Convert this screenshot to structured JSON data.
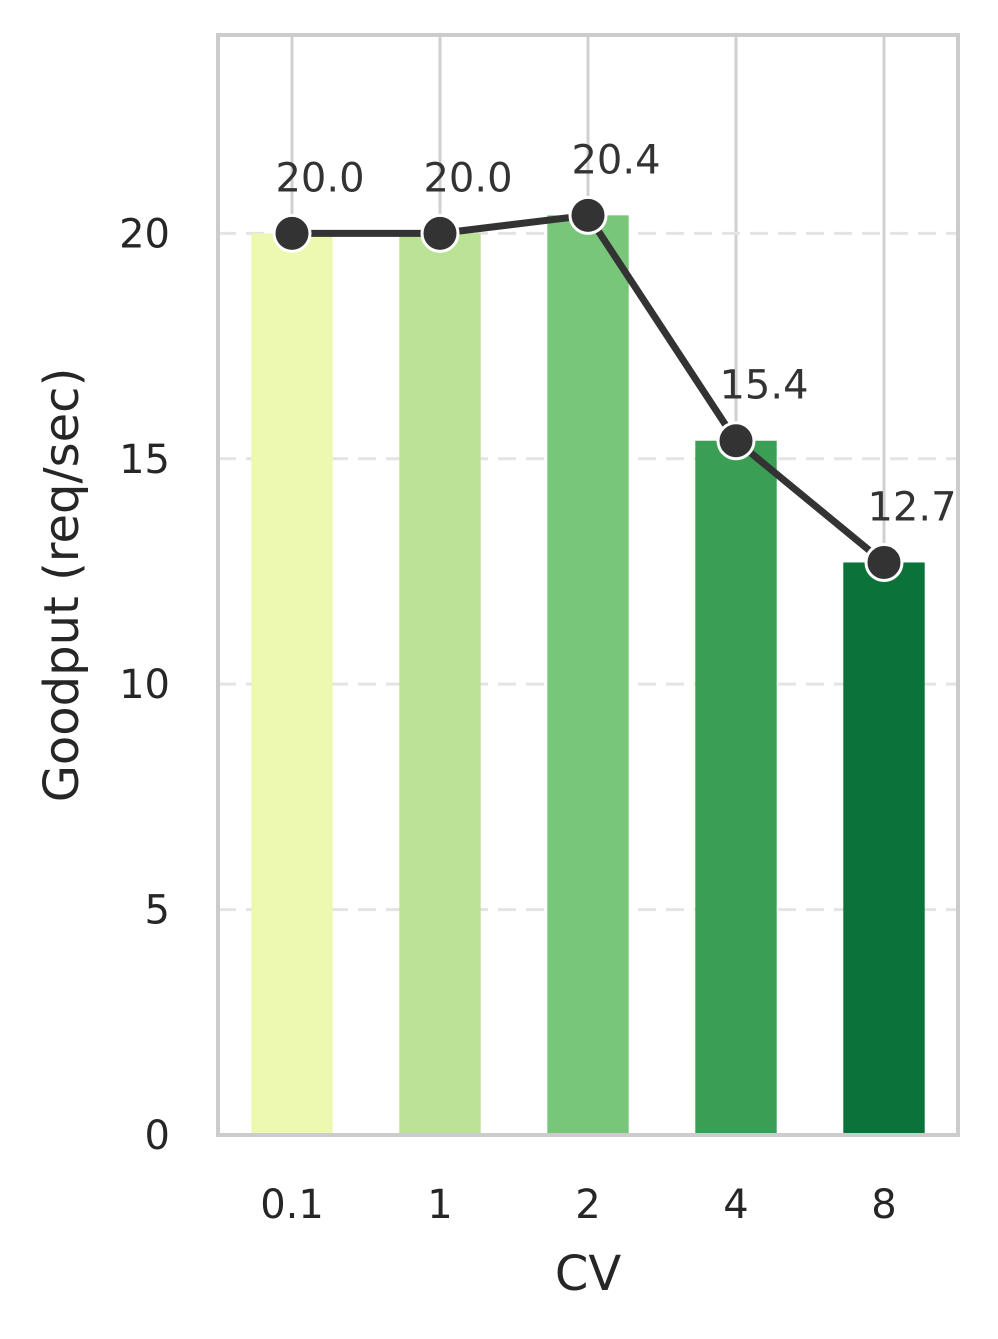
{
  "chart_data": {
    "type": "bar",
    "categories": [
      "0.1",
      "1",
      "2",
      "4",
      "8"
    ],
    "values": [
      20.0,
      20.0,
      20.4,
      15.4,
      12.7
    ],
    "data_labels": [
      "20.0",
      "20.0",
      "20.4",
      "15.4",
      "12.7"
    ],
    "overlay_line": true,
    "xlabel": "CV",
    "ylabel": "Goodput (req/sec)",
    "ylim": [
      0,
      24.4
    ],
    "yticks": [
      0,
      5,
      10,
      15,
      20
    ],
    "ytick_labels": [
      "0",
      "5",
      "10",
      "15",
      "20"
    ],
    "grid": {
      "x": true,
      "y": true,
      "y_style": "dashed"
    },
    "colors": {
      "bars": [
        "#edf8b1",
        "#bbe395",
        "#78c679",
        "#3a9f55",
        "#0b7239"
      ],
      "line": "#333333",
      "marker": "#333333",
      "marker_edge": "#ffffff",
      "frame": "#cccccc",
      "grid_x": "#d0d0d0",
      "grid_y": "#e4e4e4"
    }
  }
}
